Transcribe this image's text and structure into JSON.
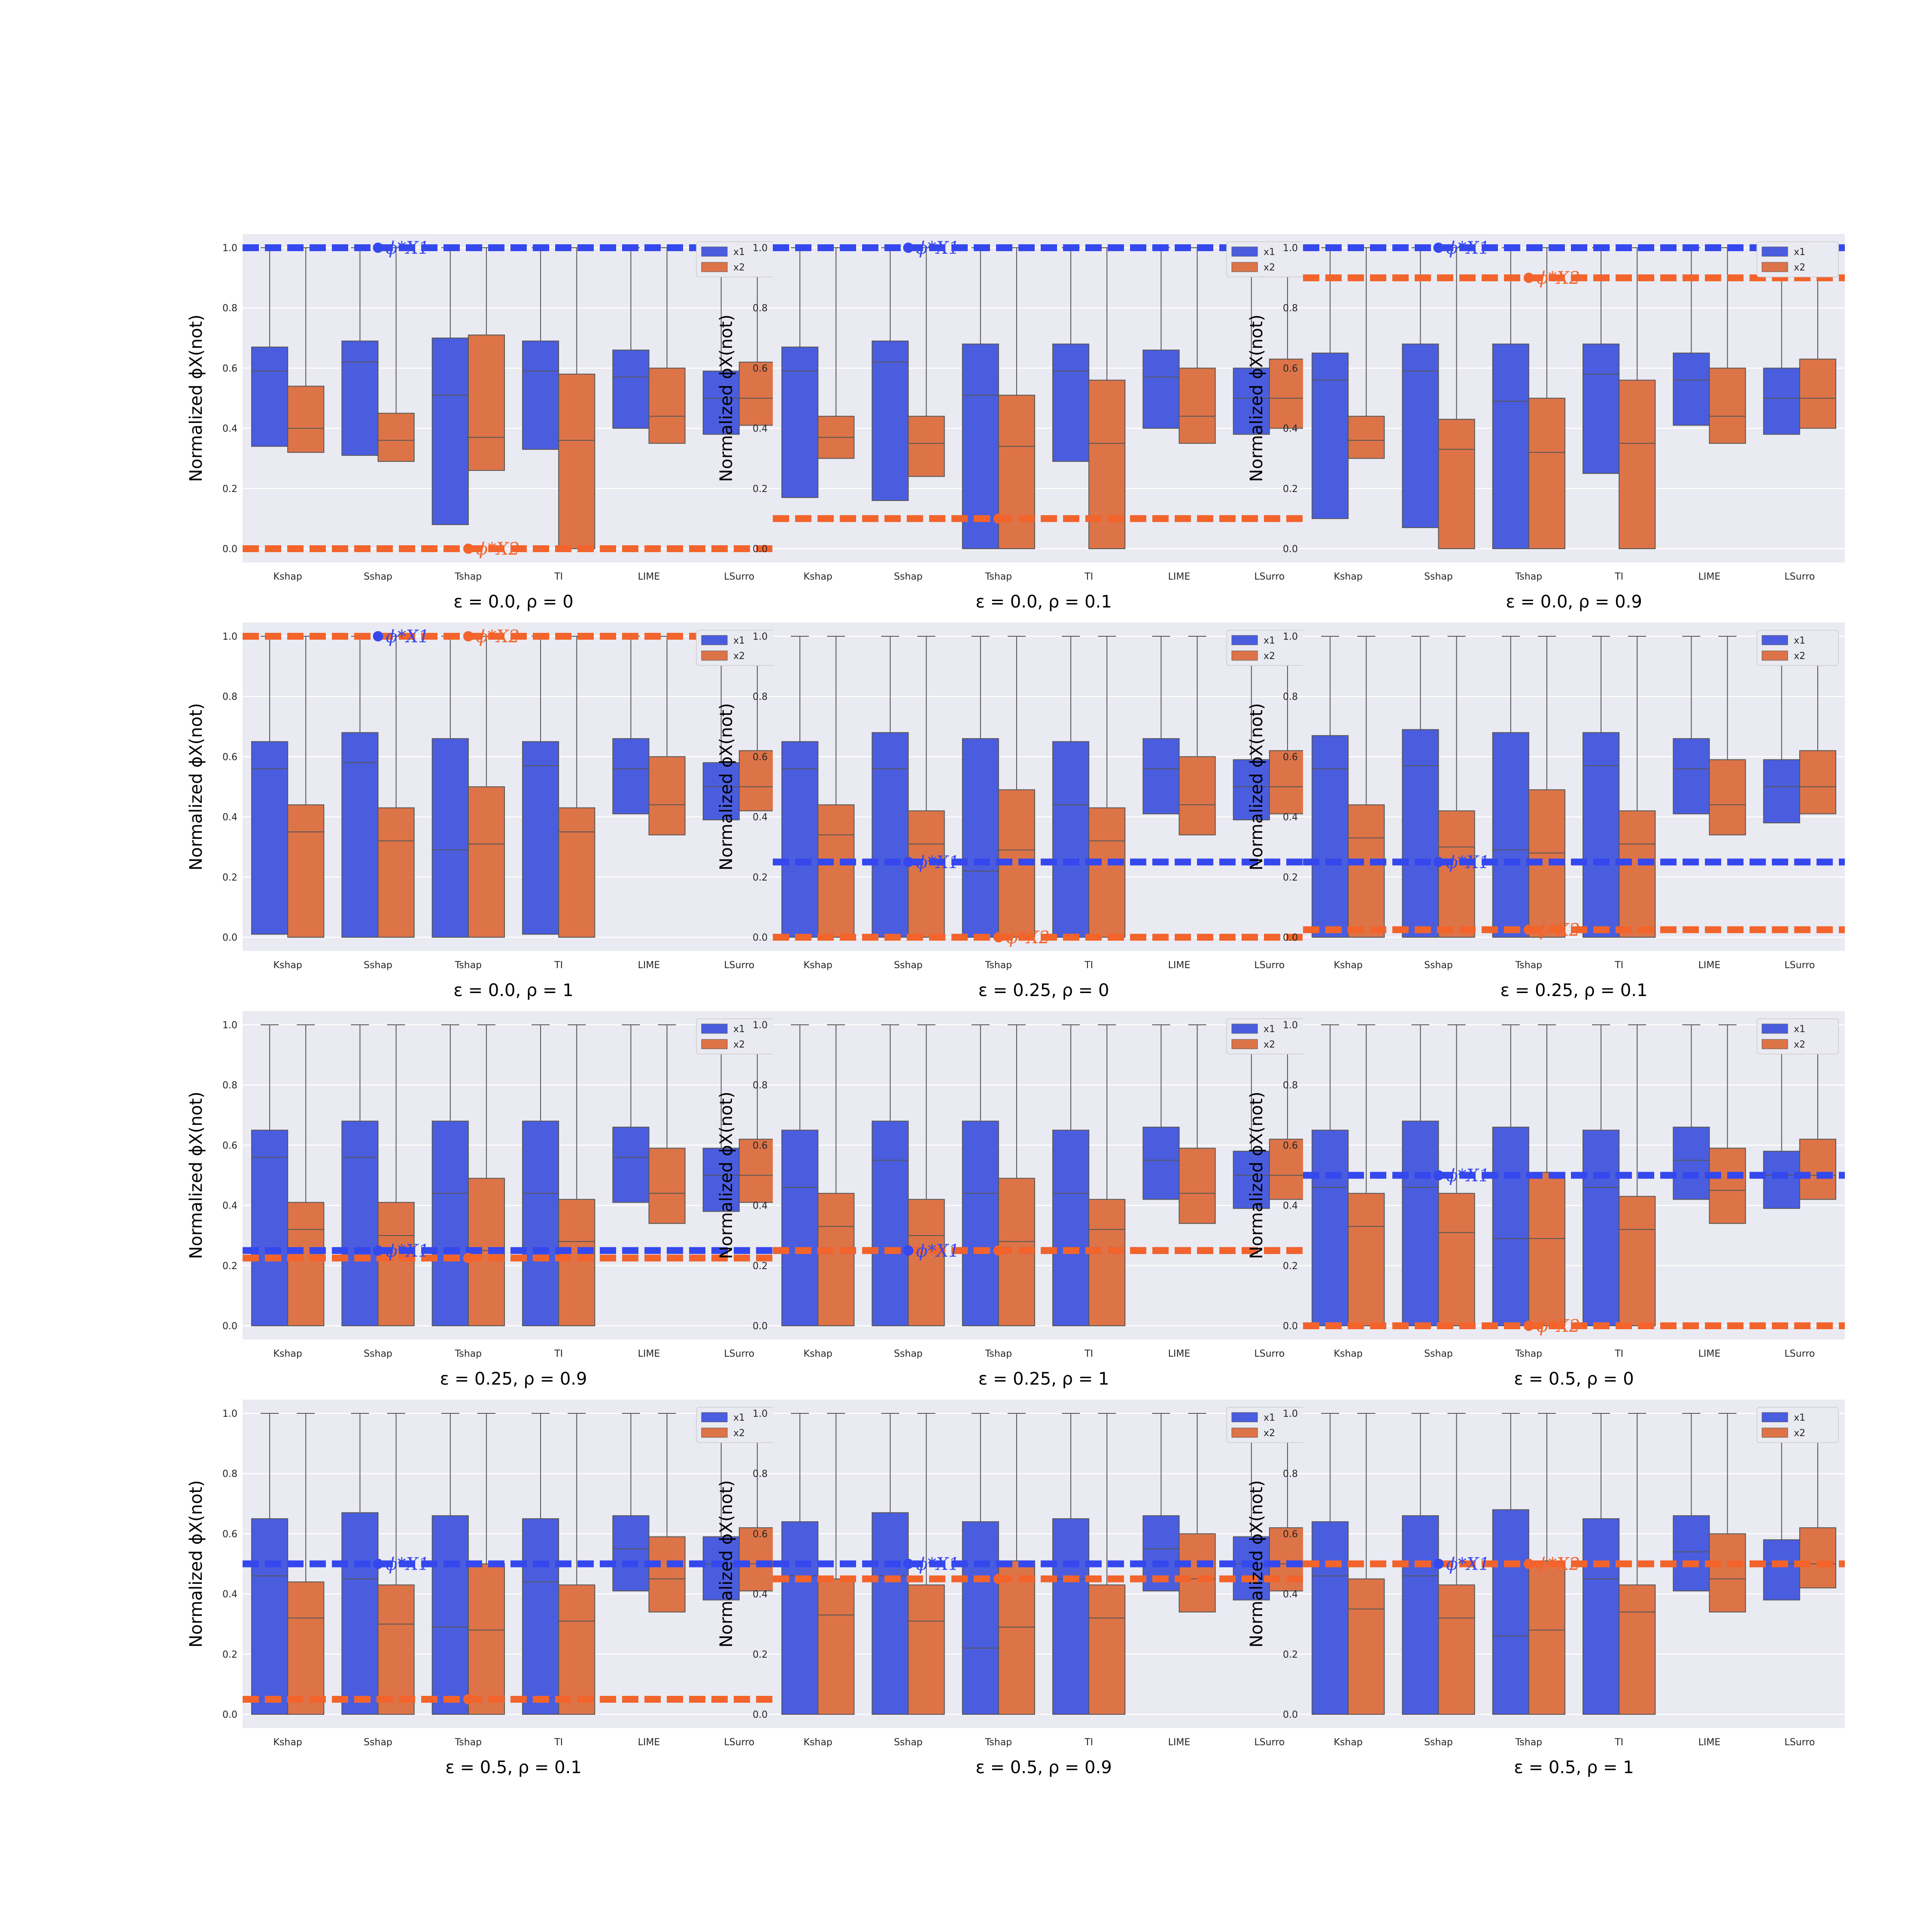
{
  "chart_data": {
    "type": "box",
    "layout": "4x3 grid",
    "methods": [
      "Kshap",
      "Sshap",
      "Tshap",
      "TI",
      "LIME",
      "LSurro"
    ],
    "series_names": [
      "x1",
      "x2"
    ],
    "colors": {
      "x1": "#4a5ddf",
      "x2": "#dd7448"
    },
    "ylabel": "Normalized ϕX(not)",
    "ylim": [
      0,
      1
    ],
    "yticks": [
      "0.0",
      "0.2",
      "0.4",
      "0.6",
      "0.8",
      "1.0"
    ],
    "legend_placement": "top-right",
    "grid": true,
    "panels": [
      {
        "title": "ε = 0.0, ρ = 0",
        "x1_box": [
          [
            0.34,
            0.59,
            0.67
          ],
          [
            0.31,
            0.62,
            0.69
          ],
          [
            0.08,
            0.51,
            0.7
          ],
          [
            0.33,
            0.59,
            0.69
          ],
          [
            0.4,
            0.57,
            0.66
          ],
          [
            0.38,
            0.5,
            0.59
          ]
        ],
        "x2_box": [
          [
            0.32,
            0.4,
            0.54
          ],
          [
            0.29,
            0.36,
            0.45
          ],
          [
            0.26,
            0.37,
            0.71
          ],
          [
            0.0,
            0.36,
            0.58
          ],
          [
            0.35,
            0.44,
            0.6
          ],
          [
            0.41,
            0.5,
            0.62
          ]
        ],
        "ref_x1": 1.0,
        "ref_x2": 0.0,
        "ann_x1": {
          "method": "Sshap",
          "label": "ϕ*X1"
        },
        "ann_x2": {
          "method": "Tshap",
          "label": "ϕ*X2"
        }
      },
      {
        "title": "ε = 0.0, ρ = 0.1",
        "x1_box": [
          [
            0.17,
            0.59,
            0.67
          ],
          [
            0.16,
            0.62,
            0.69
          ],
          [
            0.0,
            0.51,
            0.68
          ],
          [
            0.29,
            0.59,
            0.68
          ],
          [
            0.4,
            0.57,
            0.66
          ],
          [
            0.38,
            0.5,
            0.6
          ]
        ],
        "x2_box": [
          [
            0.3,
            0.37,
            0.44
          ],
          [
            0.24,
            0.35,
            0.44
          ],
          [
            0.0,
            0.34,
            0.51
          ],
          [
            0.0,
            0.35,
            0.56
          ],
          [
            0.35,
            0.44,
            0.6
          ],
          [
            0.4,
            0.5,
            0.63
          ]
        ],
        "ref_x1": 1.0,
        "ref_x2": 0.1,
        "ann_x1": {
          "method": "Sshap",
          "label": "ϕ*X1"
        },
        "ann_x2": {
          "method": "Tshap",
          "label": ""
        }
      },
      {
        "title": "ε = 0.0, ρ = 0.9",
        "x1_box": [
          [
            0.1,
            0.56,
            0.65
          ],
          [
            0.07,
            0.59,
            0.68
          ],
          [
            0.0,
            0.49,
            0.68
          ],
          [
            0.25,
            0.58,
            0.68
          ],
          [
            0.41,
            0.56,
            0.65
          ],
          [
            0.38,
            0.5,
            0.6
          ]
        ],
        "x2_box": [
          [
            0.3,
            0.36,
            0.44
          ],
          [
            0.0,
            0.33,
            0.43
          ],
          [
            0.0,
            0.32,
            0.5
          ],
          [
            0.0,
            0.35,
            0.56
          ],
          [
            0.35,
            0.44,
            0.6
          ],
          [
            0.4,
            0.5,
            0.63
          ]
        ],
        "ref_x1": 1.0,
        "ref_x2": 0.9,
        "ann_x1": {
          "method": "Sshap",
          "label": "ϕ*X1"
        },
        "ann_x2": {
          "method": "Tshap",
          "label": "ϕ*X2"
        }
      },
      {
        "title": "ε = 0.0, ρ = 1",
        "x1_box": [
          [
            0.01,
            0.56,
            0.65
          ],
          [
            0.0,
            0.58,
            0.68
          ],
          [
            0.0,
            0.29,
            0.66
          ],
          [
            0.01,
            0.57,
            0.65
          ],
          [
            0.41,
            0.56,
            0.66
          ],
          [
            0.39,
            0.5,
            0.58
          ]
        ],
        "x2_box": [
          [
            0.0,
            0.35,
            0.44
          ],
          [
            0.0,
            0.32,
            0.43
          ],
          [
            0.0,
            0.31,
            0.5
          ],
          [
            0.0,
            0.35,
            0.43
          ],
          [
            0.34,
            0.44,
            0.6
          ],
          [
            0.42,
            0.5,
            0.62
          ]
        ],
        "ref_x1": 1.0,
        "ref_x2": 1.0,
        "ann_x1": {
          "method": "Sshap",
          "label": "ϕ*X1"
        },
        "ann_x2": {
          "method": "Tshap",
          "label": "ϕ*X2"
        }
      },
      {
        "title": "ε = 0.25, ρ = 0",
        "x1_box": [
          [
            0.0,
            0.56,
            0.65
          ],
          [
            0.0,
            0.56,
            0.68
          ],
          [
            0.0,
            0.22,
            0.66
          ],
          [
            0.0,
            0.44,
            0.65
          ],
          [
            0.41,
            0.56,
            0.66
          ],
          [
            0.39,
            0.5,
            0.59
          ]
        ],
        "x2_box": [
          [
            0.0,
            0.34,
            0.44
          ],
          [
            0.0,
            0.31,
            0.42
          ],
          [
            0.0,
            0.29,
            0.49
          ],
          [
            0.0,
            0.32,
            0.43
          ],
          [
            0.34,
            0.44,
            0.6
          ],
          [
            0.41,
            0.5,
            0.62
          ]
        ],
        "ref_x1": 0.25,
        "ref_x2": 0.0,
        "ann_x1": {
          "method": "Sshap",
          "label": "ϕ*X1"
        },
        "ann_x2": {
          "method": "Tshap",
          "label": "ϕ*X2"
        }
      },
      {
        "title": "ε = 0.25, ρ = 0.1",
        "x1_box": [
          [
            0.0,
            0.56,
            0.67
          ],
          [
            0.0,
            0.57,
            0.69
          ],
          [
            0.0,
            0.29,
            0.68
          ],
          [
            0.0,
            0.57,
            0.68
          ],
          [
            0.41,
            0.56,
            0.66
          ],
          [
            0.38,
            0.5,
            0.59
          ]
        ],
        "x2_box": [
          [
            0.0,
            0.33,
            0.44
          ],
          [
            0.0,
            0.3,
            0.42
          ],
          [
            0.0,
            0.28,
            0.49
          ],
          [
            0.0,
            0.31,
            0.42
          ],
          [
            0.34,
            0.44,
            0.59
          ],
          [
            0.41,
            0.5,
            0.62
          ]
        ],
        "ref_x1": 0.25,
        "ref_x2": 0.025,
        "ann_x1": {
          "method": "Sshap",
          "label": "ϕ*X1"
        },
        "ann_x2": {
          "method": "Tshap",
          "label": "ϕ*X2"
        }
      },
      {
        "title": "ε = 0.25, ρ = 0.9",
        "x1_box": [
          [
            0.0,
            0.56,
            0.65
          ],
          [
            0.0,
            0.56,
            0.68
          ],
          [
            0.0,
            0.44,
            0.68
          ],
          [
            0.0,
            0.44,
            0.68
          ],
          [
            0.41,
            0.56,
            0.66
          ],
          [
            0.38,
            0.5,
            0.59
          ]
        ],
        "x2_box": [
          [
            0.0,
            0.32,
            0.41
          ],
          [
            0.0,
            0.3,
            0.41
          ],
          [
            0.0,
            0.25,
            0.49
          ],
          [
            0.0,
            0.28,
            0.42
          ],
          [
            0.34,
            0.44,
            0.59
          ],
          [
            0.41,
            0.5,
            0.62
          ]
        ],
        "ref_x1": 0.25,
        "ref_x2": 0.225,
        "ann_x1": {
          "method": "Sshap",
          "label": "ϕ*X1"
        },
        "ann_x2": {
          "method": "Tshap",
          "label": ""
        }
      },
      {
        "title": "ε = 0.25, ρ = 1",
        "x1_box": [
          [
            0.0,
            0.46,
            0.65
          ],
          [
            0.0,
            0.55,
            0.68
          ],
          [
            0.0,
            0.44,
            0.68
          ],
          [
            0.0,
            0.44,
            0.65
          ],
          [
            0.42,
            0.55,
            0.66
          ],
          [
            0.39,
            0.5,
            0.58
          ]
        ],
        "x2_box": [
          [
            0.0,
            0.33,
            0.44
          ],
          [
            0.0,
            0.3,
            0.42
          ],
          [
            0.0,
            0.28,
            0.49
          ],
          [
            0.0,
            0.32,
            0.42
          ],
          [
            0.34,
            0.44,
            0.59
          ],
          [
            0.42,
            0.5,
            0.62
          ]
        ],
        "ref_x1": 0.25,
        "ref_x2": 0.25,
        "ann_x1": {
          "method": "Sshap",
          "label": "ϕ*X1"
        },
        "ann_x2": {
          "method": "Tshap",
          "label": ""
        }
      },
      {
        "title": "ε = 0.5, ρ = 0",
        "x1_box": [
          [
            0.0,
            0.46,
            0.65
          ],
          [
            0.0,
            0.46,
            0.68
          ],
          [
            0.0,
            0.29,
            0.66
          ],
          [
            0.0,
            0.46,
            0.65
          ],
          [
            0.42,
            0.55,
            0.66
          ],
          [
            0.39,
            0.5,
            0.58
          ]
        ],
        "x2_box": [
          [
            0.0,
            0.33,
            0.44
          ],
          [
            0.0,
            0.31,
            0.44
          ],
          [
            0.0,
            0.29,
            0.51
          ],
          [
            0.0,
            0.32,
            0.43
          ],
          [
            0.34,
            0.45,
            0.59
          ],
          [
            0.42,
            0.5,
            0.62
          ]
        ],
        "ref_x1": 0.5,
        "ref_x2": 0.0,
        "ann_x1": {
          "method": "Sshap",
          "label": "ϕ*X1"
        },
        "ann_x2": {
          "method": "Tshap",
          "label": "ϕ*X2"
        }
      },
      {
        "title": "ε = 0.5, ρ = 0.1",
        "x1_box": [
          [
            0.0,
            0.46,
            0.65
          ],
          [
            0.0,
            0.45,
            0.67
          ],
          [
            0.0,
            0.29,
            0.66
          ],
          [
            0.0,
            0.44,
            0.65
          ],
          [
            0.41,
            0.55,
            0.66
          ],
          [
            0.38,
            0.5,
            0.59
          ]
        ],
        "x2_box": [
          [
            0.0,
            0.32,
            0.44
          ],
          [
            0.0,
            0.3,
            0.43
          ],
          [
            0.0,
            0.28,
            0.5
          ],
          [
            0.0,
            0.31,
            0.43
          ],
          [
            0.34,
            0.45,
            0.59
          ],
          [
            0.41,
            0.5,
            0.62
          ]
        ],
        "ref_x1": 0.5,
        "ref_x2": 0.05,
        "ann_x1": {
          "method": "Sshap",
          "label": "ϕ*X1"
        },
        "ann_x2": {
          "method": "Tshap",
          "label": ""
        }
      },
      {
        "title": "ε = 0.5, ρ = 0.9",
        "x1_box": [
          [
            0.0,
            0.46,
            0.64
          ],
          [
            0.0,
            0.46,
            0.67
          ],
          [
            0.0,
            0.22,
            0.64
          ],
          [
            0.0,
            0.45,
            0.65
          ],
          [
            0.41,
            0.55,
            0.66
          ],
          [
            0.38,
            0.5,
            0.59
          ]
        ],
        "x2_box": [
          [
            0.0,
            0.33,
            0.45
          ],
          [
            0.0,
            0.31,
            0.43
          ],
          [
            0.0,
            0.29,
            0.51
          ],
          [
            0.0,
            0.32,
            0.43
          ],
          [
            0.34,
            0.45,
            0.6
          ],
          [
            0.41,
            0.5,
            0.62
          ]
        ],
        "ref_x1": 0.5,
        "ref_x2": 0.45,
        "ann_x1": {
          "method": "Sshap",
          "label": "ϕ*X1"
        },
        "ann_x2": {
          "method": "Tshap",
          "label": ""
        }
      },
      {
        "title": "ε = 0.5, ρ = 1",
        "x1_box": [
          [
            0.0,
            0.46,
            0.64
          ],
          [
            0.0,
            0.46,
            0.66
          ],
          [
            0.0,
            0.26,
            0.68
          ],
          [
            0.0,
            0.45,
            0.65
          ],
          [
            0.41,
            0.54,
            0.66
          ],
          [
            0.38,
            0.5,
            0.58
          ]
        ],
        "x2_box": [
          [
            0.0,
            0.35,
            0.45
          ],
          [
            0.0,
            0.32,
            0.43
          ],
          [
            0.0,
            0.28,
            0.51
          ],
          [
            0.0,
            0.34,
            0.43
          ],
          [
            0.34,
            0.45,
            0.6
          ],
          [
            0.42,
            0.5,
            0.62
          ]
        ],
        "ref_x1": 0.5,
        "ref_x2": 0.5,
        "ann_x1": {
          "method": "Sshap",
          "label": "ϕ*X1"
        },
        "ann_x2": {
          "method": "Tshap",
          "label": "ϕ*X2"
        }
      }
    ]
  }
}
